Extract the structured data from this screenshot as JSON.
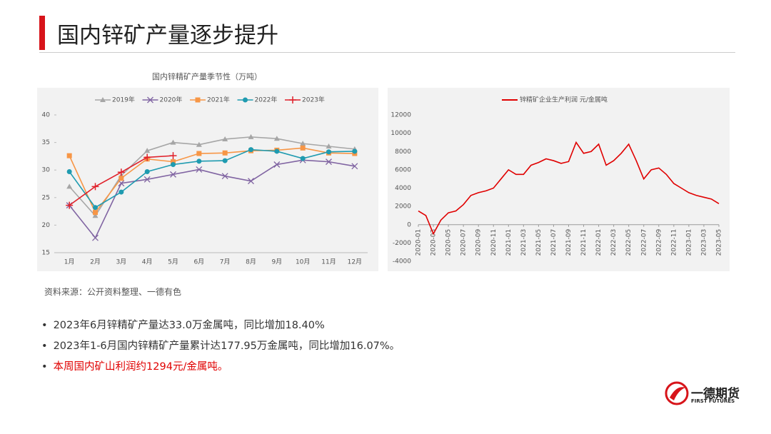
{
  "header": {
    "title": "国内锌矿产量逐步提升"
  },
  "chart_data": [
    {
      "type": "line",
      "title": "国内锌精矿产量季节性（万吨）",
      "categories": [
        "1月",
        "2月",
        "3月",
        "4月",
        "5月",
        "6月",
        "7月",
        "8月",
        "9月",
        "10月",
        "11月",
        "12月"
      ],
      "ylim": [
        15,
        40
      ],
      "yticks": [
        15,
        20,
        25,
        30,
        35,
        40
      ],
      "legend": "top",
      "series": [
        {
          "name": "2019年",
          "color": "#a6a6a6",
          "marker": "triangle",
          "values": [
            27,
            21.7,
            29,
            33.5,
            35,
            34.6,
            35.6,
            36,
            35.7,
            34.8,
            34.3,
            33.8
          ]
        },
        {
          "name": "2020年",
          "color": "#8064a2",
          "marker": "cross",
          "values": [
            23.6,
            17.7,
            27.6,
            28.3,
            29.2,
            30.1,
            28.9,
            28.0,
            31.0,
            31.8,
            31.5,
            30.7
          ]
        },
        {
          "name": "2021年",
          "color": "#f79646",
          "marker": "square",
          "values": [
            32.6,
            22.3,
            28.5,
            32.0,
            31.5,
            33.0,
            33.1,
            33.5,
            33.6,
            34.0,
            33.1,
            33.0
          ]
        },
        {
          "name": "2022年",
          "color": "#1f9bb0",
          "marker": "circle",
          "values": [
            29.7,
            23.2,
            26.0,
            29.7,
            31.0,
            31.6,
            31.7,
            33.7,
            33.4,
            32.1,
            33.3,
            33.4
          ]
        },
        {
          "name": "2023年",
          "color": "#e0202a",
          "marker": "plus",
          "values": [
            23.6,
            27.0,
            29.6,
            32.3,
            32.6,
            null,
            null,
            null,
            null,
            null,
            null,
            null
          ]
        }
      ]
    },
    {
      "type": "line",
      "legend": "top",
      "categories": [
        "2020-01",
        null,
        "2020-03",
        null,
        "2020-05",
        null,
        "2020-07",
        null,
        "2020-09",
        null,
        "2020-11",
        null,
        "2021-01",
        null,
        "2021-03",
        null,
        "2021-05",
        null,
        "2021-07",
        null,
        "2021-09",
        null,
        "2021-11",
        null,
        "2022-01",
        null,
        "2022-03",
        null,
        "2022-05",
        null,
        "2022-07",
        null,
        "2022-09",
        null,
        "2022-11",
        null,
        "2023-01",
        null,
        "2023-03",
        null,
        "2023-05"
      ],
      "ylim": [
        -4000,
        12000
      ],
      "yticks": [
        -4000,
        -2000,
        0,
        2000,
        4000,
        6000,
        8000,
        10000,
        12000
      ],
      "series": [
        {
          "name": "锌精矿企业生产利润 元/金属吨",
          "color": "#e00000",
          "values": [
            1500,
            1000,
            -1000,
            500,
            1300,
            1500,
            2200,
            3200,
            3500,
            3700,
            4000,
            5000,
            6000,
            5500,
            5500,
            6500,
            6800,
            7200,
            7000,
            6700,
            6900,
            9000,
            7800,
            8000,
            8800,
            6500,
            7000,
            7800,
            8800,
            7000,
            5000,
            6000,
            6200,
            5500,
            4500,
            4000,
            3500,
            3200,
            3000,
            2800,
            2300
          ]
        }
      ]
    }
  ],
  "source": "资料来源：公开资料整理、一德有色",
  "bullets": [
    "2023年6月锌精矿产量达33.0万金属吨，同比增加18.40%",
    "2023年1-6月国内锌精矿产量累计达177.95万金属吨，同比增加16.07%。",
    "本周国内矿山利润约1294元/金属吨。"
  ],
  "logo": {
    "name": "一德期货",
    "subtitle": "FIRST FUTURES"
  }
}
